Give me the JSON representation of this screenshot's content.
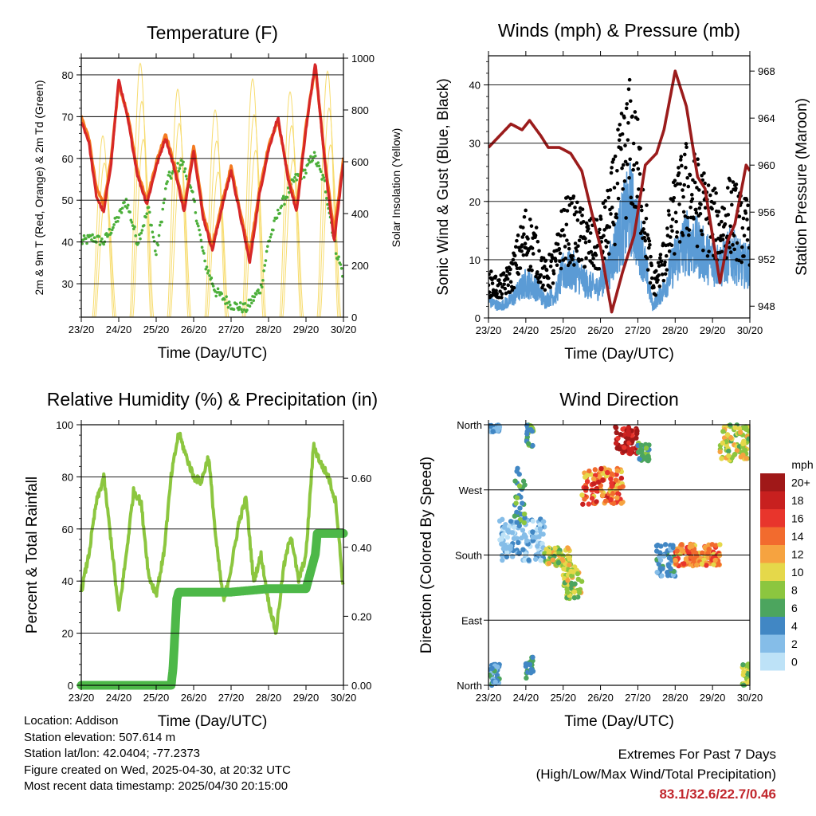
{
  "chart_data": [
    {
      "type": "line",
      "title": "Temperature (F)",
      "xlabel": "Time (Day/UTC)",
      "ylabel": "2m & 9m T (Red, Orange) & 2m Td (Green)",
      "y2label": "Solar Insolation (Yellow)",
      "x_ticks": [
        "23/20",
        "24/20",
        "25/20",
        "26/20",
        "27/20",
        "28/20",
        "29/20",
        "30/20"
      ],
      "xlim": [
        0,
        7
      ],
      "ylim": [
        22,
        84
      ],
      "y_ticks": [
        30,
        40,
        50,
        60,
        70,
        80
      ],
      "y2lim": [
        0,
        1000
      ],
      "y2_ticks": [
        0,
        200,
        400,
        600,
        800,
        1000
      ],
      "grid": true,
      "colors": {
        "t2m": "#d62728",
        "t9m": "#f47a20",
        "td": "#4caf3a",
        "solar": "#f7dc6f"
      },
      "series": [
        {
          "key": "t9m",
          "x": [
            0,
            0.2,
            0.4,
            0.6,
            0.8,
            1.0,
            1.25,
            1.5,
            1.75,
            2.0,
            2.25,
            2.5,
            2.75,
            3.0,
            3.25,
            3.5,
            3.75,
            4.0,
            4.25,
            4.5,
            4.75,
            5.0,
            5.25,
            5.5,
            5.75,
            6.0,
            6.25,
            6.5,
            6.75,
            7.0
          ],
          "y": [
            70,
            65,
            53,
            49,
            60,
            78,
            70,
            57,
            50,
            59,
            66,
            58,
            48,
            63,
            47,
            39,
            49,
            58,
            47,
            37,
            52,
            63,
            69,
            57,
            48,
            68,
            82,
            60,
            42,
            60
          ]
        },
        {
          "key": "t2m",
          "x": [
            0,
            0.2,
            0.4,
            0.6,
            0.8,
            1.0,
            1.25,
            1.5,
            1.75,
            2.0,
            2.25,
            2.5,
            2.75,
            3.0,
            3.25,
            3.5,
            3.75,
            4.0,
            4.25,
            4.5,
            4.75,
            5.0,
            5.25,
            5.5,
            5.75,
            6.0,
            6.25,
            6.5,
            6.75,
            7.0
          ],
          "y": [
            69,
            64,
            51,
            47,
            59,
            79,
            69,
            56,
            49,
            58,
            65,
            57,
            47,
            62,
            46,
            38,
            48,
            57,
            46,
            35,
            51,
            62,
            70,
            56,
            47,
            67,
            83,
            59,
            40,
            59
          ]
        },
        {
          "key": "td",
          "x": [
            0,
            0.3,
            0.6,
            1.0,
            1.2,
            1.5,
            1.8,
            2.0,
            2.3,
            2.7,
            3.0,
            3.3,
            3.6,
            4.0,
            4.4,
            4.8,
            5.0,
            5.3,
            5.7,
            6.0,
            6.2,
            6.5,
            6.8,
            7.0
          ],
          "y": [
            40,
            41,
            40,
            46,
            50,
            40,
            48,
            37,
            55,
            59,
            50,
            35,
            28,
            25,
            24,
            29,
            40,
            48,
            55,
            57,
            61,
            54,
            38,
            32
          ]
        },
        {
          "key": "solar",
          "type": "day-cycle",
          "days": [
            0,
            1,
            2,
            3,
            4,
            5,
            6
          ],
          "peaks": [
            700,
            980,
            880,
            800,
            920,
            870,
            950
          ]
        }
      ]
    },
    {
      "type": "scatter",
      "title": "Winds (mph) & Pressure (mb)",
      "xlabel": "Time (Day/UTC)",
      "ylabel": "Sonic Wind & Gust (Blue, Black)",
      "y2label": "Station Pressure (Maroon)",
      "x_ticks": [
        "23/20",
        "24/20",
        "25/20",
        "26/20",
        "27/20",
        "28/20",
        "29/20",
        "30/20"
      ],
      "xlim": [
        0,
        7
      ],
      "ylim": [
        0,
        45
      ],
      "y_ticks": [
        0,
        10,
        20,
        30,
        40
      ],
      "y2lim": [
        947,
        969.3
      ],
      "y2_ticks": [
        948,
        952,
        956,
        960,
        964,
        968
      ],
      "grid": true,
      "colors": {
        "wind": "#5b9bd5",
        "gust": "#000000",
        "pressure": "#9b1c1c"
      },
      "wind_profile": {
        "x": [
          0,
          0.3,
          0.6,
          1.0,
          1.3,
          1.5,
          1.8,
          2.0,
          2.3,
          2.6,
          2.9,
          3.2,
          3.5,
          3.8,
          4.1,
          4.4,
          4.7,
          5.0,
          5.3,
          5.6,
          5.9,
          6.2,
          6.5,
          6.8,
          7.0
        ],
        "sustained": [
          3,
          2,
          3,
          6,
          5,
          3,
          4,
          8,
          8,
          6,
          5,
          8,
          14,
          19,
          12,
          2,
          5,
          10,
          13,
          12,
          10,
          9,
          11,
          9,
          9
        ],
        "gust": [
          6,
          5,
          7,
          14,
          11,
          7,
          9,
          15,
          15,
          13,
          12,
          16,
          24,
          30,
          22,
          5,
          10,
          18,
          22,
          20,
          17,
          15,
          18,
          15,
          15
        ]
      },
      "pressure": {
        "x": [
          0,
          0.3,
          0.6,
          0.9,
          1.1,
          1.4,
          1.6,
          1.9,
          2.2,
          2.5,
          2.8,
          3.0,
          3.3,
          3.6,
          3.9,
          4.2,
          4.5,
          4.7,
          5.0,
          5.3,
          5.6,
          5.8,
          6.0,
          6.2,
          6.4,
          6.6,
          6.9,
          7.0
        ],
        "y": [
          961.5,
          962.5,
          963.5,
          963,
          963.8,
          962.5,
          961.5,
          961.5,
          961,
          959.5,
          955.5,
          953,
          947.5,
          951,
          954,
          960,
          961,
          963,
          968,
          965,
          959,
          958,
          954,
          950,
          953.5,
          955,
          960,
          959.5
        ]
      }
    },
    {
      "type": "line",
      "title": "Relative Humidity (%) & Precipitation (in)",
      "xlabel": "Time (Day/UTC)",
      "ylabel": "Percent & Total Rainfall",
      "x_ticks": [
        "23/20",
        "24/20",
        "25/20",
        "26/20",
        "27/20",
        "28/20",
        "29/20",
        "30/20"
      ],
      "xlim": [
        0,
        7
      ],
      "ylim": [
        0,
        100
      ],
      "y_ticks": [
        0,
        20,
        40,
        60,
        80,
        100
      ],
      "y2lim": [
        0,
        0.755
      ],
      "y2_ticks": [
        0.0,
        0.2,
        0.4,
        0.6
      ],
      "grid": true,
      "colors": {
        "rh": "#8cc63f",
        "precip": "#4db848"
      },
      "series": [
        {
          "key": "rh",
          "x": [
            0,
            0.2,
            0.4,
            0.6,
            0.8,
            1.0,
            1.2,
            1.4,
            1.6,
            1.8,
            2.0,
            2.2,
            2.4,
            2.6,
            2.8,
            3.0,
            3.2,
            3.4,
            3.6,
            3.8,
            4.0,
            4.2,
            4.4,
            4.6,
            4.8,
            5.0,
            5.2,
            5.4,
            5.6,
            5.8,
            6.0,
            6.2,
            6.4,
            6.6,
            6.8,
            7.0
          ],
          "y": [
            36,
            50,
            70,
            80,
            55,
            28,
            50,
            75,
            70,
            42,
            35,
            50,
            80,
            97,
            88,
            80,
            78,
            88,
            55,
            32,
            45,
            62,
            72,
            40,
            50,
            32,
            20,
            45,
            58,
            40,
            50,
            92,
            85,
            80,
            70,
            36
          ]
        },
        {
          "key": "precip",
          "x": [
            0,
            2.4,
            2.45,
            2.5,
            2.55,
            2.6,
            4.0,
            5.0,
            6.0,
            6.25,
            6.3,
            6.5,
            7.0
          ],
          "y": [
            0,
            0,
            0.05,
            0.15,
            0.25,
            0.27,
            0.27,
            0.28,
            0.28,
            0.38,
            0.44,
            0.44,
            0.44
          ]
        }
      ]
    },
    {
      "type": "scatter",
      "title": "Wind Direction",
      "xlabel": "Time (Day/UTC)",
      "ylabel": "Direction (Colored By Speed)",
      "x_ticks": [
        "23/20",
        "24/20",
        "25/20",
        "26/20",
        "27/20",
        "28/20",
        "29/20",
        "30/20"
      ],
      "y_ticks": [
        "North",
        "East",
        "South",
        "West",
        "North"
      ],
      "xlim": [
        0,
        7
      ],
      "ylim": [
        0,
        360
      ],
      "grid": true,
      "colorbar": {
        "title": "mph",
        "labels": [
          "20+",
          "18",
          "16",
          "14",
          "12",
          "10",
          "8",
          "6",
          "4",
          "2",
          "0"
        ],
        "colors": [
          "#a01818",
          "#c8201f",
          "#e8352c",
          "#f26b2e",
          "#f6a340",
          "#e5d84a",
          "#8cc63f",
          "#4ca55e",
          "#4187c4",
          "#85bde8",
          "#bde2f7"
        ]
      },
      "clusters": [
        {
          "x": [
            0.0,
            0.3
          ],
          "dir": [
            350,
            360
          ],
          "speed": [
            1,
            5
          ]
        },
        {
          "x": [
            0.0,
            0.3
          ],
          "dir": [
            0,
            30
          ],
          "speed": [
            2,
            6
          ]
        },
        {
          "x": [
            0.3,
            1.5
          ],
          "dir": [
            170,
            230
          ],
          "speed": [
            0,
            4
          ]
        },
        {
          "x": [
            0.7,
            1.0
          ],
          "dir": [
            220,
            300
          ],
          "speed": [
            4,
            8
          ]
        },
        {
          "x": [
            1.0,
            1.2
          ],
          "dir": [
            330,
            360
          ],
          "speed": [
            3,
            8
          ]
        },
        {
          "x": [
            1.0,
            1.2
          ],
          "dir": [
            10,
            40
          ],
          "speed": [
            3,
            7
          ]
        },
        {
          "x": [
            1.5,
            2.2
          ],
          "dir": [
            165,
            190
          ],
          "speed": [
            6,
            12
          ]
        },
        {
          "x": [
            2.0,
            2.5
          ],
          "dir": [
            120,
            165
          ],
          "speed": [
            6,
            12
          ]
        },
        {
          "x": [
            2.5,
            3.6
          ],
          "dir": [
            250,
            300
          ],
          "speed": [
            10,
            18
          ]
        },
        {
          "x": [
            3.4,
            4.0
          ],
          "dir": [
            320,
            358
          ],
          "speed": [
            16,
            22
          ]
        },
        {
          "x": [
            4.0,
            4.3
          ],
          "dir": [
            310,
            335
          ],
          "speed": [
            4,
            8
          ]
        },
        {
          "x": [
            4.5,
            5.0
          ],
          "dir": [
            150,
            195
          ],
          "speed": [
            2,
            6
          ]
        },
        {
          "x": [
            5.0,
            6.2
          ],
          "dir": [
            165,
            195
          ],
          "speed": [
            10,
            16
          ]
        },
        {
          "x": [
            6.2,
            7.0
          ],
          "dir": [
            310,
            360
          ],
          "speed": [
            6,
            12
          ]
        },
        {
          "x": [
            6.8,
            7.0
          ],
          "dir": [
            0,
            30
          ],
          "speed": [
            6,
            10
          ]
        }
      ]
    }
  ],
  "info": {
    "location": "Location: Addison",
    "elevation": "Station elevation: 507.614 m",
    "latlon": "Station lat/lon: 42.0404; -77.2373",
    "created": "Figure created on Wed, 2025-04-30, at 20:32 UTC",
    "recent": "Most recent data timestamp: 2025/04/30 20:15:00"
  },
  "extremes": {
    "title": "Extremes For Past 7 Days",
    "subtitle": "(High/Low/Max Wind/Total Precipitation)",
    "values": "83.1/32.6/22.7/0.46"
  }
}
